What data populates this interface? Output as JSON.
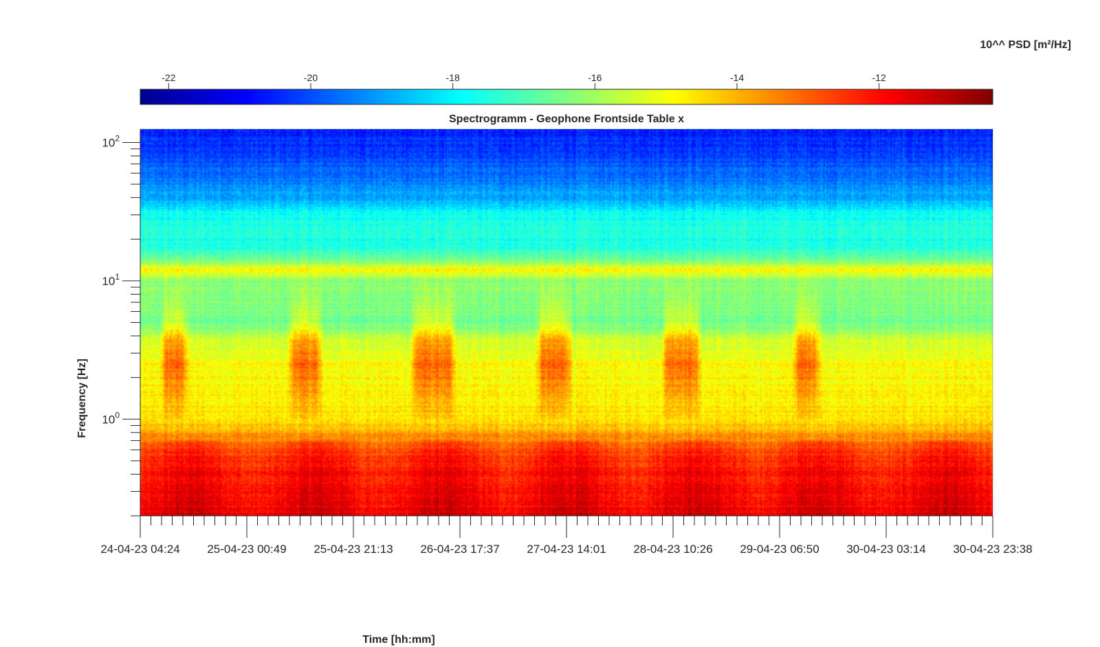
{
  "chart_data": {
    "type": "heatmap",
    "title": "Spectrogramm - Geophone Frontside Table x",
    "xlabel": "Time [hh:mm]",
    "ylabel": "Frequency [Hz]",
    "colorbar": {
      "label": "10^^ PSD [m²/Hz]",
      "range": [
        -22.4,
        -10.4
      ],
      "ticks": [
        -22,
        -20,
        -18,
        -16,
        -14,
        -12
      ],
      "tick_labels": [
        "-22",
        "-20",
        "-18",
        "-16",
        "-14",
        "-12"
      ],
      "colormap": "jet",
      "placement": "top"
    },
    "x": {
      "start": "24-04-23 04:24",
      "end": "30-04-23 23:38",
      "tick_labels": [
        "24-04-23 04:24",
        "25-04-23 00:49",
        "25-04-23 21:13",
        "26-04-23 17:37",
        "27-04-23 14:01",
        "28-04-23 10:26",
        "29-04-23 06:50",
        "30-04-23 03:14",
        "30-04-23 23:38"
      ]
    },
    "y": {
      "scale": "log",
      "range": [
        0.2,
        125
      ],
      "ticks": [
        1,
        10,
        100
      ],
      "tick_labels": [
        "10^0",
        "10^1",
        "10^2"
      ]
    },
    "psd_profile_log10": {
      "freq_hz": [
        0.2,
        0.3,
        0.45,
        0.6,
        0.75,
        1.0,
        1.5,
        2.5,
        3.5,
        5.0,
        7.0,
        10.0,
        12.0,
        14.0,
        17.0,
        22.0,
        30.0,
        36.0,
        50.0,
        80.0,
        125.0
      ],
      "psd": [
        -11.6,
        -11.8,
        -12.1,
        -12.6,
        -13.6,
        -14.6,
        -14.8,
        -14.9,
        -15.3,
        -16.6,
        -16.3,
        -16.3,
        -14.8,
        -16.4,
        -17.4,
        -17.6,
        -17.7,
        -18.6,
        -19.4,
        -20.1,
        -20.6
      ]
    },
    "activity_bursts": [
      {
        "start": "24-04-23 08:00",
        "end": "24-04-23 14:00"
      },
      {
        "start": "25-04-23 08:30",
        "end": "25-04-23 15:30"
      },
      {
        "start": "26-04-23 08:00",
        "end": "26-04-23 17:00"
      },
      {
        "start": "27-04-23 08:00",
        "end": "27-04-23 15:30"
      },
      {
        "start": "28-04-23 08:00",
        "end": "28-04-23 16:00"
      },
      {
        "start": "29-04-23 09:00",
        "end": "29-04-23 15:00"
      }
    ]
  }
}
